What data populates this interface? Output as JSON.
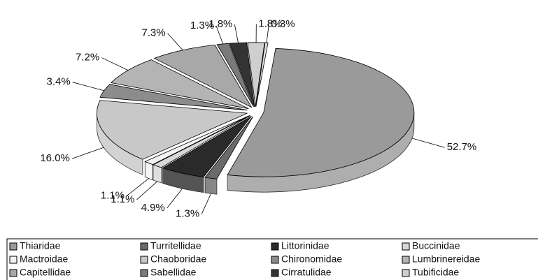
{
  "chart_data": {
    "type": "pie",
    "categories": [
      "Thiaridae",
      "Turritellidae",
      "Littorinidae",
      "Buccinidae",
      "Mactroidae",
      "Chaoboridae",
      "Chironomidae",
      "Lumbrinereidae",
      "Capitellidae",
      "Sabellidae",
      "Cirratulidae",
      "Tubificidae",
      null
    ],
    "values": [
      52.7,
      1.3,
      4.9,
      1.1,
      1.1,
      16.0,
      3.4,
      7.2,
      7.3,
      1.3,
      1.8,
      1.8,
      0.3
    ],
    "value_labels": [
      "52.7%",
      "1.3%",
      "4.9%",
      "1.1%",
      "1.1%",
      "16.0%",
      "3.4%",
      "7.2%",
      "7.3%",
      "1.3%",
      "1.8%",
      "1.8%",
      "0.3%"
    ],
    "colors": [
      "#9a9a9a",
      "#6a6a6a",
      "#2a2a2a",
      "#d8d8d8",
      "#f2f2f2",
      "#c8c8c8",
      "#8c8c8c",
      "#b4b4b4",
      "#a8a8a8",
      "#7a7a7a",
      "#333333",
      "#cfcfcf",
      "#e4e4e4"
    ],
    "legend": "bottom"
  }
}
